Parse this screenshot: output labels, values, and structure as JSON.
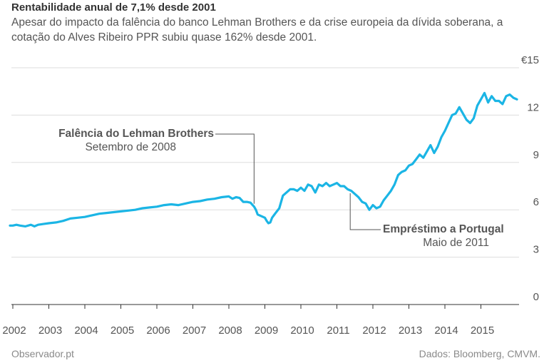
{
  "header": {
    "title": "Rentabilidade anual de 7,1% desde 2001",
    "subtitle": "Apesar do impacto da falência do banco Lehman Brothers e da crise europeia da dívida soberana, a cotação do Alves Ribeiro PPR subiu quase 162% desde 2001."
  },
  "footer": {
    "source_left": "Observador.pt",
    "source_right": "Dados: Bloomberg, CMVM."
  },
  "chart_data": {
    "type": "line",
    "title": "Rentabilidade anual de 7,1% desde 2001",
    "xlabel": "",
    "ylabel": "",
    "xlim": [
      2001.92,
      2016.0
    ],
    "ylim": [
      0,
      15
    ],
    "x_ticks": [
      "2002",
      "2003",
      "2004",
      "2005",
      "2006",
      "2007",
      "2008",
      "2009",
      "2010",
      "2011",
      "2012",
      "2013",
      "2014",
      "2015"
    ],
    "y_ticks": [
      "0",
      "3",
      "6",
      "9",
      "12",
      "€15"
    ],
    "grid": true,
    "line_color": "#1bb5e5",
    "annotations": [
      {
        "title": "Falência do Lehman Brothers",
        "subtitle": "Setembro de 2008",
        "x": 2008.7
      },
      {
        "title": "Empréstimo a Portugal",
        "subtitle": "Maio de 2011",
        "x": 2011.37
      }
    ],
    "series": [
      {
        "x": [
          2001.92,
          2002.0,
          2002.1,
          2002.2,
          2002.35,
          2002.5,
          2002.6,
          2002.7,
          2002.85,
          2003.0,
          2003.2,
          2003.4,
          2003.6,
          2003.8,
          2004.0,
          2004.2,
          2004.4,
          2004.6,
          2004.8,
          2005.0,
          2005.2,
          2005.4,
          2005.6,
          2005.8,
          2006.0,
          2006.2,
          2006.4,
          2006.6,
          2006.8,
          2007.0,
          2007.2,
          2007.4,
          2007.6,
          2007.8,
          2008.0,
          2008.1,
          2008.2,
          2008.3,
          2008.4,
          2008.5,
          2008.6,
          2008.7,
          2008.75,
          2008.8,
          2008.9,
          2009.0,
          2009.05,
          2009.1,
          2009.15,
          2009.2,
          2009.3,
          2009.4,
          2009.5,
          2009.6,
          2009.7,
          2009.8,
          2009.9,
          2010.0,
          2010.1,
          2010.2,
          2010.3,
          2010.4,
          2010.5,
          2010.6,
          2010.7,
          2010.8,
          2010.9,
          2011.0,
          2011.1,
          2011.2,
          2011.3,
          2011.4,
          2011.5,
          2011.6,
          2011.7,
          2011.8,
          2011.9,
          2012.0,
          2012.1,
          2012.2,
          2012.3,
          2012.4,
          2012.5,
          2012.6,
          2012.7,
          2012.8,
          2012.9,
          2013.0,
          2013.1,
          2013.2,
          2013.3,
          2013.4,
          2013.5,
          2013.6,
          2013.7,
          2013.8,
          2013.9,
          2014.0,
          2014.1,
          2014.2,
          2014.3,
          2014.4,
          2014.5,
          2014.6,
          2014.7,
          2014.8,
          2014.9,
          2015.0,
          2015.1,
          2015.2,
          2015.3,
          2015.4,
          2015.5,
          2015.6,
          2015.7,
          2015.8,
          2015.9,
          2016.0
        ],
        "y": [
          5.0,
          5.0,
          5.05,
          5.0,
          4.95,
          5.05,
          4.95,
          5.05,
          5.1,
          5.15,
          5.2,
          5.3,
          5.45,
          5.5,
          5.55,
          5.65,
          5.75,
          5.8,
          5.85,
          5.9,
          5.95,
          6.0,
          6.1,
          6.15,
          6.2,
          6.3,
          6.35,
          6.3,
          6.4,
          6.5,
          6.55,
          6.65,
          6.7,
          6.8,
          6.85,
          6.7,
          6.8,
          6.75,
          6.5,
          6.5,
          6.45,
          6.2,
          6.0,
          5.7,
          5.6,
          5.5,
          5.3,
          5.15,
          5.2,
          5.5,
          5.8,
          6.1,
          6.9,
          7.1,
          7.3,
          7.3,
          7.2,
          7.4,
          7.2,
          7.6,
          7.5,
          7.1,
          7.6,
          7.5,
          7.7,
          7.5,
          7.6,
          7.7,
          7.5,
          7.5,
          7.3,
          7.2,
          7.0,
          6.8,
          6.5,
          6.4,
          6.0,
          6.3,
          6.1,
          6.2,
          6.6,
          6.9,
          7.2,
          7.6,
          8.2,
          8.4,
          8.5,
          8.8,
          8.9,
          9.2,
          9.5,
          9.3,
          9.7,
          10.1,
          9.6,
          10.0,
          10.6,
          11.0,
          11.5,
          12.0,
          12.1,
          12.5,
          12.1,
          11.7,
          11.5,
          11.8,
          12.6,
          13.0,
          13.4,
          12.8,
          13.2,
          12.9,
          12.9,
          12.7,
          13.2,
          13.3,
          13.1,
          13.0
        ]
      }
    ]
  }
}
